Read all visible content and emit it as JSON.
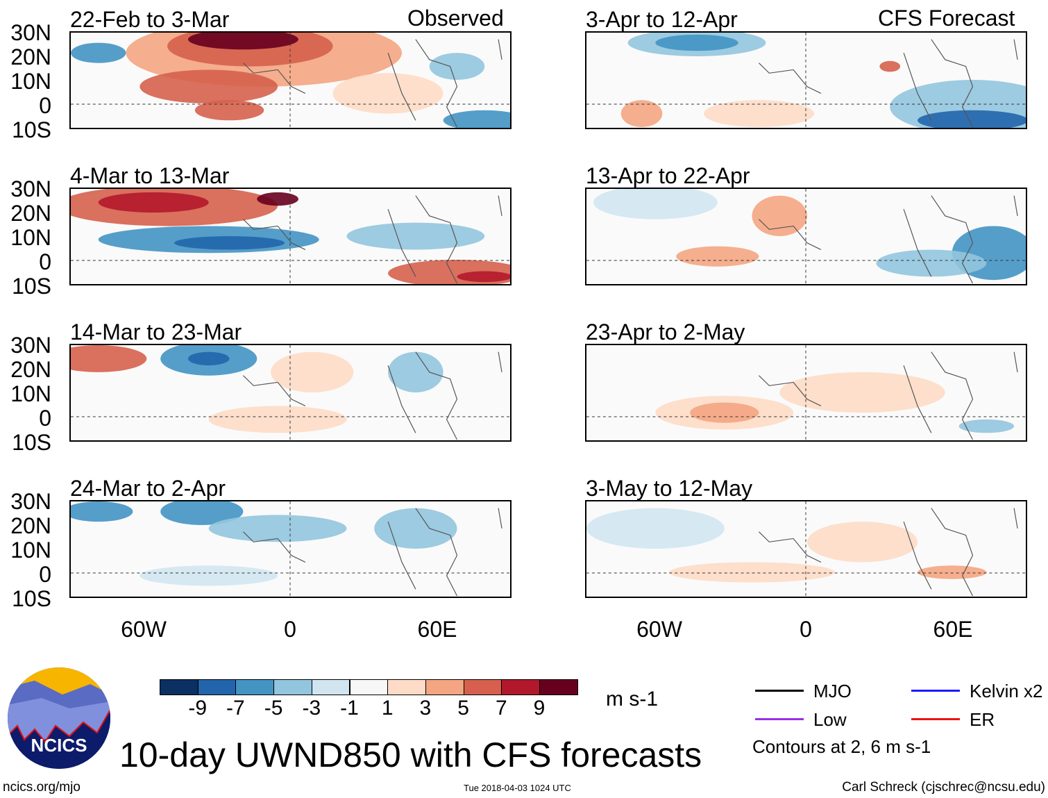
{
  "headers": {
    "left": "Observed",
    "right": "CFS Forecast"
  },
  "panels": {
    "left": [
      "22-Feb to 3-Mar",
      "4-Mar to 13-Mar",
      "14-Mar to 23-Mar",
      "24-Mar to 2-Apr"
    ],
    "right": [
      "3-Apr to 12-Apr",
      "13-Apr to 22-Apr",
      "23-Apr to 2-May",
      "3-May to 12-May"
    ]
  },
  "chart_data": {
    "type": "heatmap",
    "title": "10-day UWND850 with CFS forecasts",
    "lat_ticks": [
      "30N",
      "20N",
      "10N",
      "0",
      "10S"
    ],
    "lon_ticks": [
      "60W",
      "0",
      "60E"
    ],
    "colorbar": {
      "units": "m s-1",
      "labels": [
        "-9",
        "-7",
        "-5",
        "-3",
        "-1",
        "1",
        "3",
        "5",
        "7",
        "9"
      ],
      "colors": [
        "#0b3061",
        "#2265ac",
        "#4393c3",
        "#92c5de",
        "#d1e5f0",
        "#f7f7f7",
        "#fddbc7",
        "#f4a582",
        "#d6604d",
        "#b2182b",
        "#67001f"
      ]
    },
    "legend": [
      {
        "label": "MJO",
        "color": "#000000"
      },
      {
        "label": "Kelvin x2",
        "color": "#1a1aff"
      },
      {
        "label": "Low",
        "color": "#9a2ee6"
      },
      {
        "label": "ER",
        "color": "#ee1111"
      }
    ],
    "contour_note": "Contours at 2, 6 m s-1"
  },
  "logo": {
    "text": "NCICS"
  },
  "footer": {
    "url": "ncics.org/mjo",
    "timestamp": "Tue 2018-04-03 1024 UTC",
    "author": "Carl Schreck (cjschrec@ncsu.edu)"
  }
}
